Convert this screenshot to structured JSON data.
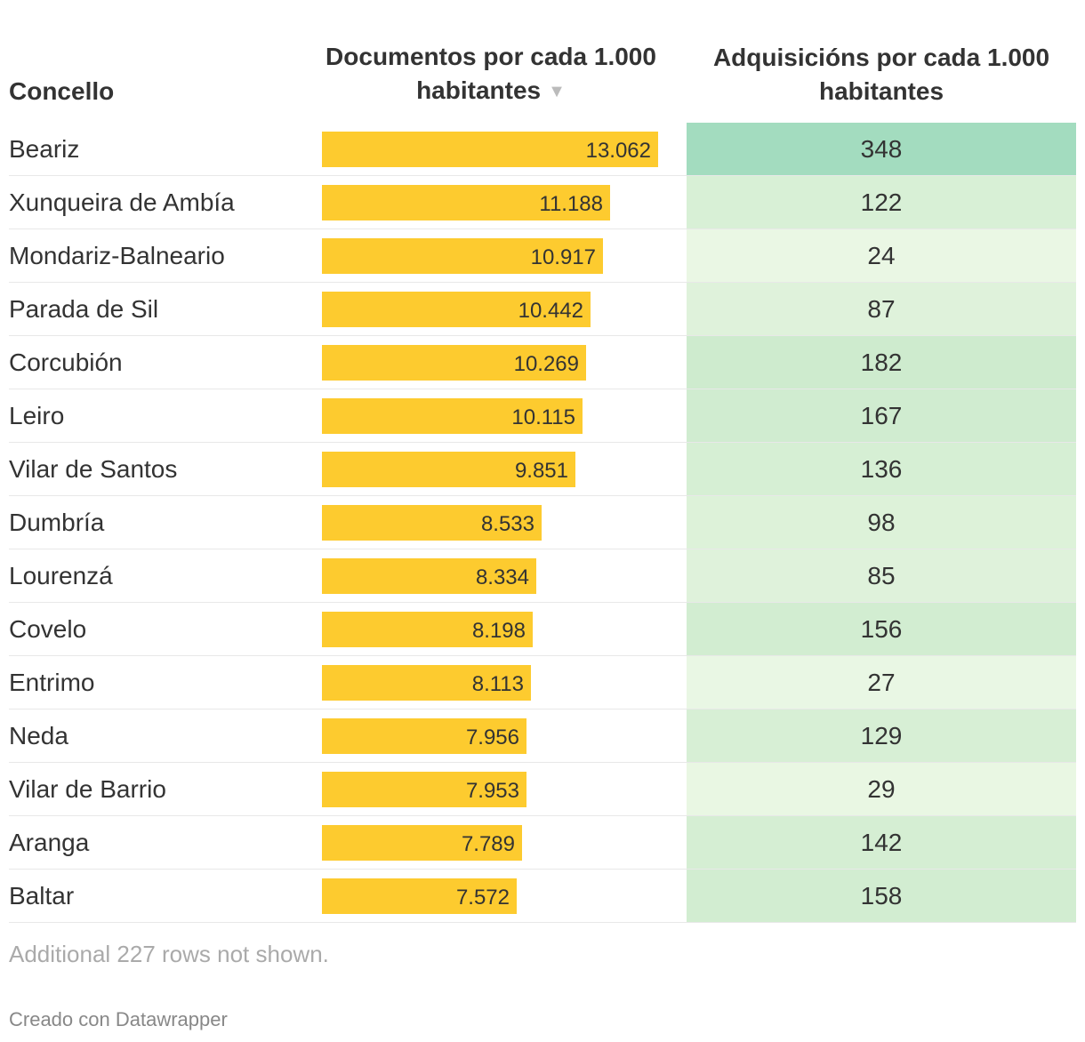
{
  "colors": {
    "bar": "#fdcb2f",
    "heat_low": "#eaf7e4",
    "heat_mid": "#cdebcd",
    "heat_high": "#a3dcbf",
    "text": "#333333",
    "muted": "#aaaaaa"
  },
  "chart_data": {
    "type": "table",
    "columns": {
      "name": "Concello",
      "docs": "Documentos por cada 1.000 habitantes",
      "adq": "Adquisicións por cada 1.000 habitantes"
    },
    "sort_icon": "sort-down-triangle-icon",
    "docs_axis_max": 13.062,
    "adq_range": [
      24,
      348
    ],
    "rows": [
      {
        "name": "Beariz",
        "docs": 13.062,
        "docs_label": "13.062",
        "adq": 348,
        "adq_label": "348"
      },
      {
        "name": "Xunqueira de Ambía",
        "docs": 11.188,
        "docs_label": "11.188",
        "adq": 122,
        "adq_label": "122"
      },
      {
        "name": "Mondariz-Balneario",
        "docs": 10.917,
        "docs_label": "10.917",
        "adq": 24,
        "adq_label": "24"
      },
      {
        "name": "Parada de Sil",
        "docs": 10.442,
        "docs_label": "10.442",
        "adq": 87,
        "adq_label": "87"
      },
      {
        "name": "Corcubión",
        "docs": 10.269,
        "docs_label": "10.269",
        "adq": 182,
        "adq_label": "182"
      },
      {
        "name": "Leiro",
        "docs": 10.115,
        "docs_label": "10.115",
        "adq": 167,
        "adq_label": "167"
      },
      {
        "name": "Vilar de Santos",
        "docs": 9.851,
        "docs_label": "9.851",
        "adq": 136,
        "adq_label": "136"
      },
      {
        "name": "Dumbría",
        "docs": 8.533,
        "docs_label": "8.533",
        "adq": 98,
        "adq_label": "98"
      },
      {
        "name": "Lourenzá",
        "docs": 8.334,
        "docs_label": "8.334",
        "adq": 85,
        "adq_label": "85"
      },
      {
        "name": "Covelo",
        "docs": 8.198,
        "docs_label": "8.198",
        "adq": 156,
        "adq_label": "156"
      },
      {
        "name": "Entrimo",
        "docs": 8.113,
        "docs_label": "8.113",
        "adq": 27,
        "adq_label": "27"
      },
      {
        "name": "Neda",
        "docs": 7.956,
        "docs_label": "7.956",
        "adq": 129,
        "adq_label": "129"
      },
      {
        "name": "Vilar de Barrio",
        "docs": 7.953,
        "docs_label": "7.953",
        "adq": 29,
        "adq_label": "29"
      },
      {
        "name": "Aranga",
        "docs": 7.789,
        "docs_label": "7.789",
        "adq": 142,
        "adq_label": "142"
      },
      {
        "name": "Baltar",
        "docs": 7.572,
        "docs_label": "7.572",
        "adq": 158,
        "adq_label": "158"
      }
    ]
  },
  "footnote": "Additional 227 rows not shown.",
  "credit": "Creado con Datawrapper"
}
